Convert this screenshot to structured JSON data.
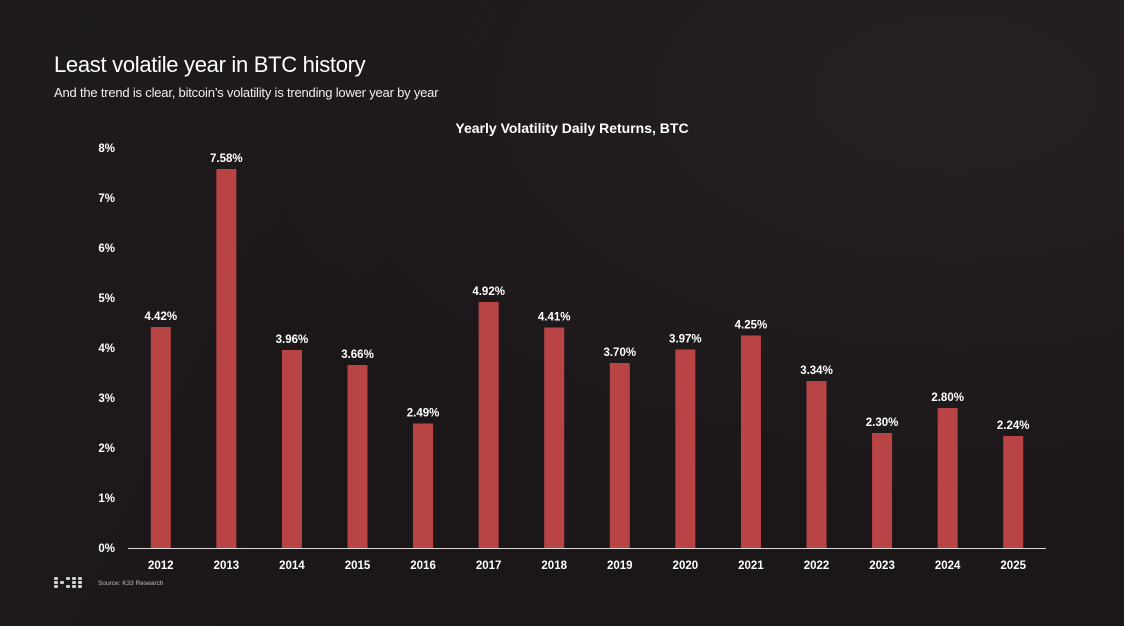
{
  "header": {
    "title": "Least volatile year in BTC history",
    "subtitle": "And the trend is clear, bitcoin’s volatility is trending lower year by year"
  },
  "footer": {
    "source": "Source: K33 Research",
    "logo_icon": "k33-logo-icon"
  },
  "colors": {
    "background": "#1b1719",
    "bar": "#b94446",
    "text": "#ffffff"
  },
  "chart_data": {
    "type": "bar",
    "title": "Yearly Volatility Daily Returns, BTC",
    "xlabel": "",
    "ylabel": "",
    "categories": [
      "2012",
      "2013",
      "2014",
      "2015",
      "2016",
      "2017",
      "2018",
      "2019",
      "2020",
      "2021",
      "2022",
      "2023",
      "2024",
      "2025"
    ],
    "values": [
      4.42,
      7.58,
      3.96,
      3.66,
      2.49,
      4.92,
      4.41,
      3.7,
      3.97,
      4.25,
      3.34,
      2.3,
      2.8,
      2.24
    ],
    "value_labels": [
      "4.42%",
      "7.58%",
      "3.96%",
      "3.66%",
      "2.49%",
      "4.92%",
      "4.41%",
      "3.70%",
      "3.97%",
      "4.25%",
      "3.34%",
      "2.30%",
      "2.80%",
      "2.24%"
    ],
    "ylim": [
      0,
      8
    ],
    "yticks": [
      0,
      1,
      2,
      3,
      4,
      5,
      6,
      7,
      8
    ],
    "ytick_labels": [
      "0%",
      "1%",
      "2%",
      "3%",
      "4%",
      "5%",
      "6%",
      "7%",
      "8%"
    ],
    "grid": false,
    "legend": "none"
  }
}
